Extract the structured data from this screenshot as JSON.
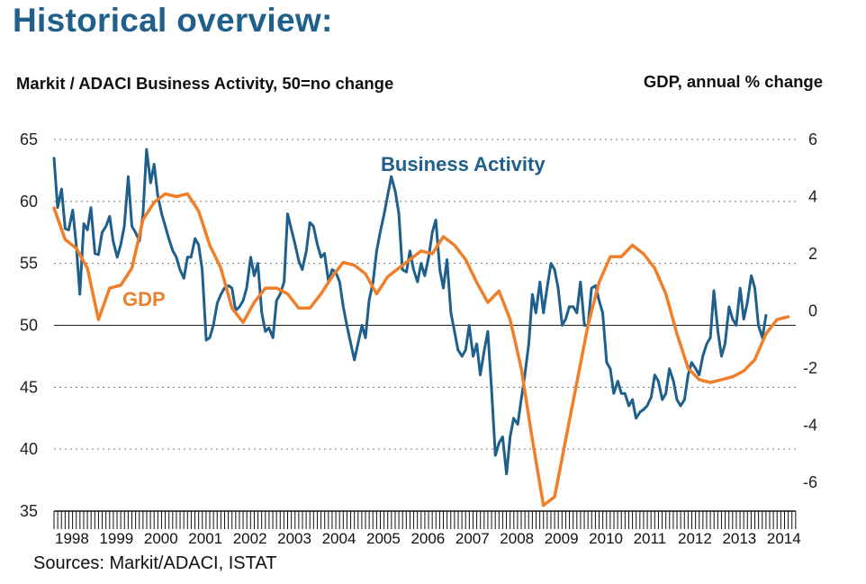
{
  "page": {
    "title": "Historical overview:",
    "left_axis_title": "Markit / ADACI  Business Activity, 50=no change",
    "right_axis_title": "GDP, annual % change",
    "source": "Sources: Markit/ADACI, ISTAT"
  },
  "chart_data": {
    "type": "line",
    "title": "",
    "x_years": [
      "1998",
      "1999",
      "2000",
      "2001",
      "2002",
      "2003",
      "2004",
      "2005",
      "2006",
      "2007",
      "2008",
      "2009",
      "2010",
      "2011",
      "2012",
      "2013",
      "2014"
    ],
    "xlim": [
      1998.0,
      2014.67
    ],
    "y_left": {
      "label": "Markit / ADACI  Business Activity, 50=no change",
      "ticks": [
        35,
        40,
        45,
        50,
        55,
        60,
        65
      ],
      "lim": [
        35,
        65
      ],
      "reference_line": 50
    },
    "y_right": {
      "label": "GDP, annual % change",
      "ticks": [
        -6,
        -4,
        -2,
        0,
        2,
        4,
        6
      ],
      "lim": [
        -7,
        6
      ]
    },
    "grid": true,
    "series": [
      {
        "name": "Business Activity",
        "axis": "left",
        "color": "#1f5f8b",
        "points": [
          [
            1998.0,
            63.5
          ],
          [
            1998.08,
            59.5
          ],
          [
            1998.17,
            61
          ],
          [
            1998.25,
            57.8
          ],
          [
            1998.33,
            57.7
          ],
          [
            1998.42,
            59.3
          ],
          [
            1998.5,
            56.5
          ],
          [
            1998.58,
            52.5
          ],
          [
            1998.67,
            58.2
          ],
          [
            1998.75,
            57.7
          ],
          [
            1998.83,
            59.5
          ],
          [
            1998.92,
            55.8
          ],
          [
            1999.0,
            55.7
          ],
          [
            1999.08,
            57.5
          ],
          [
            1999.17,
            58
          ],
          [
            1999.25,
            58.8
          ],
          [
            1999.33,
            56.8
          ],
          [
            1999.42,
            55.5
          ],
          [
            1999.5,
            56.5
          ],
          [
            1999.58,
            58
          ],
          [
            1999.67,
            62
          ],
          [
            1999.75,
            58
          ],
          [
            1999.83,
            57.5
          ],
          [
            1999.92,
            56.8
          ],
          [
            2000.0,
            59
          ],
          [
            2000.08,
            64.2
          ],
          [
            2000.17,
            61.5
          ],
          [
            2000.25,
            63
          ],
          [
            2000.33,
            60.5
          ],
          [
            2000.42,
            59
          ],
          [
            2000.5,
            58
          ],
          [
            2000.58,
            57
          ],
          [
            2000.67,
            56
          ],
          [
            2000.75,
            55.5
          ],
          [
            2000.83,
            54.5
          ],
          [
            2000.92,
            53.8
          ],
          [
            2001.0,
            55.5
          ],
          [
            2001.08,
            55.5
          ],
          [
            2001.17,
            57
          ],
          [
            2001.25,
            56.5
          ],
          [
            2001.33,
            54.5
          ],
          [
            2001.42,
            48.8
          ],
          [
            2001.5,
            49
          ],
          [
            2001.58,
            50
          ],
          [
            2001.67,
            51.8
          ],
          [
            2001.75,
            52.5
          ],
          [
            2001.83,
            53
          ],
          [
            2001.92,
            53.2
          ],
          [
            2002.0,
            53
          ],
          [
            2002.08,
            51.2
          ],
          [
            2002.17,
            51.5
          ],
          [
            2002.25,
            52
          ],
          [
            2002.33,
            53
          ],
          [
            2002.42,
            55.5
          ],
          [
            2002.5,
            54
          ],
          [
            2002.58,
            55
          ],
          [
            2002.67,
            51
          ],
          [
            2002.75,
            49.5
          ],
          [
            2002.83,
            49.8
          ],
          [
            2002.92,
            49
          ],
          [
            2003.0,
            52
          ],
          [
            2003.08,
            52.5
          ],
          [
            2003.17,
            53.5
          ],
          [
            2003.25,
            59
          ],
          [
            2003.33,
            57.8
          ],
          [
            2003.42,
            56.5
          ],
          [
            2003.5,
            55.2
          ],
          [
            2003.58,
            54.5
          ],
          [
            2003.67,
            56
          ],
          [
            2003.75,
            58.3
          ],
          [
            2003.83,
            58
          ],
          [
            2003.92,
            56.5
          ],
          [
            2004.0,
            55.5
          ],
          [
            2004.08,
            55.8
          ],
          [
            2004.17,
            53.5
          ],
          [
            2004.25,
            54.5
          ],
          [
            2004.33,
            54.3
          ],
          [
            2004.42,
            53.5
          ],
          [
            2004.5,
            51.5
          ],
          [
            2004.58,
            50
          ],
          [
            2004.67,
            48.5
          ],
          [
            2004.75,
            47.2
          ],
          [
            2004.83,
            48.5
          ],
          [
            2004.92,
            50
          ],
          [
            2005.0,
            49
          ],
          [
            2005.08,
            52
          ],
          [
            2005.17,
            53.5
          ],
          [
            2005.25,
            56
          ],
          [
            2005.33,
            57.5
          ],
          [
            2005.42,
            59
          ],
          [
            2005.5,
            60.5
          ],
          [
            2005.58,
            62
          ],
          [
            2005.67,
            60.8
          ],
          [
            2005.75,
            59
          ],
          [
            2005.83,
            54.5
          ],
          [
            2005.92,
            54.3
          ],
          [
            2006.0,
            56
          ],
          [
            2006.08,
            54.5
          ],
          [
            2006.17,
            53.5
          ],
          [
            2006.25,
            55
          ],
          [
            2006.33,
            54
          ],
          [
            2006.42,
            55.5
          ],
          [
            2006.5,
            57.5
          ],
          [
            2006.58,
            58.5
          ],
          [
            2006.67,
            54.5
          ],
          [
            2006.75,
            53
          ],
          [
            2006.83,
            55.3
          ],
          [
            2006.92,
            51
          ],
          [
            2007.0,
            49.5
          ],
          [
            2007.08,
            48
          ],
          [
            2007.17,
            47.5
          ],
          [
            2007.25,
            48
          ],
          [
            2007.33,
            50
          ],
          [
            2007.42,
            47.5
          ],
          [
            2007.5,
            48.5
          ],
          [
            2007.58,
            46
          ],
          [
            2007.67,
            48
          ],
          [
            2007.75,
            49.5
          ],
          [
            2007.83,
            45
          ],
          [
            2007.92,
            39.5
          ],
          [
            2008.0,
            40.5
          ],
          [
            2008.08,
            41
          ],
          [
            2008.17,
            38
          ],
          [
            2008.25,
            41
          ],
          [
            2008.33,
            42.5
          ],
          [
            2008.42,
            42
          ],
          [
            2008.5,
            44
          ],
          [
            2008.58,
            46
          ],
          [
            2008.67,
            48.5
          ],
          [
            2008.75,
            52.5
          ],
          [
            2008.83,
            51
          ],
          [
            2008.92,
            53.5
          ],
          [
            2009.0,
            51
          ],
          [
            2009.08,
            53
          ],
          [
            2009.17,
            55
          ],
          [
            2009.25,
            54.5
          ],
          [
            2009.33,
            53
          ],
          [
            2009.42,
            50
          ],
          [
            2009.5,
            50.5
          ],
          [
            2009.58,
            51.5
          ],
          [
            2009.67,
            51.5
          ],
          [
            2009.75,
            51
          ],
          [
            2009.83,
            53.5
          ],
          [
            2009.92,
            50
          ],
          [
            2010.0,
            50
          ],
          [
            2010.08,
            53
          ],
          [
            2010.17,
            53.2
          ],
          [
            2010.25,
            52
          ],
          [
            2010.33,
            51
          ],
          [
            2010.42,
            47
          ],
          [
            2010.5,
            46.5
          ],
          [
            2010.58,
            44.5
          ],
          [
            2010.67,
            45.5
          ],
          [
            2010.75,
            44.5
          ],
          [
            2010.83,
            44.5
          ],
          [
            2010.92,
            43.5
          ],
          [
            2011.0,
            44
          ],
          [
            2011.08,
            42.5
          ],
          [
            2011.17,
            43
          ],
          [
            2011.25,
            43.2
          ],
          [
            2011.33,
            43.5
          ],
          [
            2011.42,
            44.2
          ],
          [
            2011.5,
            46
          ],
          [
            2011.58,
            45.5
          ],
          [
            2011.67,
            44
          ],
          [
            2011.75,
            44.5
          ],
          [
            2011.83,
            46.5
          ],
          [
            2011.92,
            45.5
          ],
          [
            2012.0,
            44
          ],
          [
            2012.08,
            43.5
          ],
          [
            2012.17,
            44
          ],
          [
            2012.25,
            46
          ],
          [
            2012.33,
            47
          ],
          [
            2012.42,
            46.5
          ],
          [
            2012.5,
            46
          ],
          [
            2012.58,
            47.5
          ],
          [
            2012.67,
            48.5
          ],
          [
            2012.75,
            49
          ],
          [
            2012.83,
            52.8
          ],
          [
            2012.92,
            49.5
          ],
          [
            2013.0,
            47.5
          ],
          [
            2013.08,
            48.5
          ],
          [
            2013.17,
            51.5
          ],
          [
            2013.25,
            50.5
          ],
          [
            2013.33,
            50
          ],
          [
            2013.42,
            53
          ],
          [
            2013.5,
            50.5
          ],
          [
            2013.58,
            51.8
          ],
          [
            2013.67,
            54
          ],
          [
            2013.75,
            53
          ],
          [
            2013.83,
            50
          ],
          [
            2013.92,
            49
          ],
          [
            2014.0,
            50.8
          ]
        ]
      },
      {
        "name": "GDP",
        "axis": "right",
        "color": "#f07f2a",
        "points": [
          [
            1998.0,
            3.6
          ],
          [
            1998.25,
            2.5
          ],
          [
            1998.5,
            2.2
          ],
          [
            1998.75,
            1.5
          ],
          [
            1999.0,
            -0.3
          ],
          [
            1999.25,
            0.8
          ],
          [
            1999.5,
            0.9
          ],
          [
            1999.75,
            1.5
          ],
          [
            2000.0,
            3.2
          ],
          [
            2000.25,
            3.8
          ],
          [
            2000.5,
            4.1
          ],
          [
            2000.75,
            4.0
          ],
          [
            2001.0,
            4.1
          ],
          [
            2001.25,
            3.5
          ],
          [
            2001.5,
            2.3
          ],
          [
            2001.75,
            1.5
          ],
          [
            2002.0,
            0.1
          ],
          [
            2002.25,
            -0.4
          ],
          [
            2002.5,
            0.3
          ],
          [
            2002.75,
            0.8
          ],
          [
            2003.0,
            0.8
          ],
          [
            2003.25,
            0.6
          ],
          [
            2003.5,
            0.1
          ],
          [
            2003.75,
            0.1
          ],
          [
            2004.0,
            0.6
          ],
          [
            2004.25,
            1.2
          ],
          [
            2004.5,
            1.7
          ],
          [
            2004.75,
            1.6
          ],
          [
            2005.0,
            1.3
          ],
          [
            2005.25,
            0.6
          ],
          [
            2005.5,
            1.2
          ],
          [
            2005.75,
            1.5
          ],
          [
            2006.0,
            1.8
          ],
          [
            2006.25,
            2.1
          ],
          [
            2006.5,
            2.0
          ],
          [
            2006.75,
            2.6
          ],
          [
            2007.0,
            2.3
          ],
          [
            2007.25,
            1.8
          ],
          [
            2007.5,
            1.0
          ],
          [
            2007.75,
            0.3
          ],
          [
            2008.0,
            0.7
          ],
          [
            2008.25,
            -0.3
          ],
          [
            2008.5,
            -2.0
          ],
          [
            2008.75,
            -4.5
          ],
          [
            2009.0,
            -6.8
          ],
          [
            2009.25,
            -6.5
          ],
          [
            2009.5,
            -4.5
          ],
          [
            2009.75,
            -2.5
          ],
          [
            2010.0,
            -0.5
          ],
          [
            2010.25,
            1.0
          ],
          [
            2010.5,
            1.9
          ],
          [
            2010.75,
            1.9
          ],
          [
            2011.0,
            2.3
          ],
          [
            2011.25,
            2.0
          ],
          [
            2011.5,
            1.5
          ],
          [
            2011.75,
            0.6
          ],
          [
            2012.0,
            -0.8
          ],
          [
            2012.25,
            -2.0
          ],
          [
            2012.5,
            -2.4
          ],
          [
            2012.75,
            -2.5
          ],
          [
            2013.0,
            -2.4
          ],
          [
            2013.25,
            -2.3
          ],
          [
            2013.5,
            -2.1
          ],
          [
            2013.75,
            -1.7
          ],
          [
            2014.0,
            -0.8
          ],
          [
            2014.25,
            -0.3
          ],
          [
            2014.5,
            -0.2
          ]
        ]
      }
    ],
    "annotations": [
      {
        "text": "Business Activity",
        "color": "#1f5f8b"
      },
      {
        "text": "GDP",
        "color": "#f07f2a"
      }
    ]
  }
}
